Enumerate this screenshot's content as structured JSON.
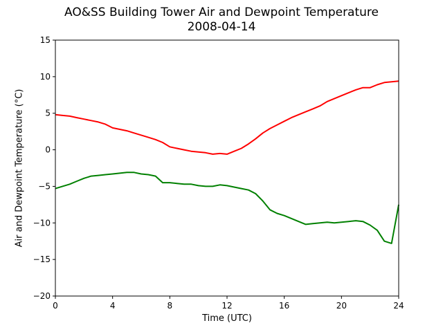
{
  "chart_data": {
    "type": "line",
    "title": "AO&SS Building Tower Air and Dewpoint Temperature",
    "subtitle": "2008-04-14",
    "xlabel": "Time (UTC)",
    "ylabel": "Air and Dewpoint Temperature (°C)",
    "xlim": [
      0,
      24
    ],
    "ylim": [
      -20,
      15
    ],
    "xticks": [
      0,
      4,
      8,
      12,
      16,
      20,
      24
    ],
    "yticks": [
      -20,
      -15,
      -10,
      -5,
      0,
      5,
      10,
      15
    ],
    "grid": false,
    "legend": "none",
    "series": [
      {
        "color": "#ff0000",
        "x": [
          0,
          0.5,
          1,
          1.5,
          2,
          2.5,
          3,
          3.5,
          4,
          4.5,
          5,
          5.5,
          6,
          6.5,
          7,
          7.5,
          8,
          8.5,
          9,
          9.5,
          10,
          10.5,
          11,
          11.5,
          12,
          12.5,
          13,
          13.5,
          14,
          14.5,
          15,
          15.5,
          16,
          16.5,
          17,
          17.5,
          18,
          18.5,
          19,
          19.5,
          20,
          20.5,
          21,
          21.5,
          22,
          22.5,
          23,
          23.5,
          24
        ],
        "y": [
          4.8,
          4.7,
          4.6,
          4.4,
          4.2,
          4.0,
          3.8,
          3.5,
          3.0,
          2.8,
          2.6,
          2.3,
          2.0,
          1.7,
          1.4,
          1.0,
          0.4,
          0.2,
          0.0,
          -0.2,
          -0.3,
          -0.4,
          -0.6,
          -0.5,
          -0.6,
          -0.2,
          0.2,
          0.8,
          1.5,
          2.3,
          2.9,
          3.4,
          3.9,
          4.4,
          4.8,
          5.2,
          5.6,
          6.0,
          6.6,
          7.0,
          7.4,
          7.8,
          8.2,
          8.5,
          8.5,
          8.9,
          9.2,
          9.3,
          9.4
        ]
      },
      {
        "color": "#008000",
        "x": [
          0,
          0.5,
          1,
          1.5,
          2,
          2.5,
          3,
          3.5,
          4,
          4.5,
          5,
          5.5,
          6,
          6.5,
          7,
          7.5,
          8,
          8.5,
          9,
          9.5,
          10,
          10.5,
          11,
          11.5,
          12,
          12.5,
          13,
          13.5,
          14,
          14.5,
          15,
          15.5,
          16,
          16.5,
          17,
          17.5,
          18,
          18.5,
          19,
          19.5,
          20,
          20.5,
          21,
          21.5,
          22,
          22.5,
          23,
          23.5,
          24
        ],
        "y": [
          -5.3,
          -5.0,
          -4.7,
          -4.3,
          -3.9,
          -3.6,
          -3.5,
          -3.4,
          -3.3,
          -3.2,
          -3.1,
          -3.1,
          -3.3,
          -3.4,
          -3.6,
          -4.5,
          -4.5,
          -4.6,
          -4.7,
          -4.7,
          -4.9,
          -5.0,
          -5.0,
          -4.8,
          -4.9,
          -5.1,
          -5.3,
          -5.5,
          -6.0,
          -7.0,
          -8.2,
          -8.7,
          -9.0,
          -9.4,
          -9.8,
          -10.2,
          -10.1,
          -10.0,
          -9.9,
          -10.0,
          -9.9,
          -9.8,
          -9.7,
          -9.8,
          -10.3,
          -11.0,
          -12.5,
          -12.8,
          -7.5
        ]
      }
    ]
  }
}
